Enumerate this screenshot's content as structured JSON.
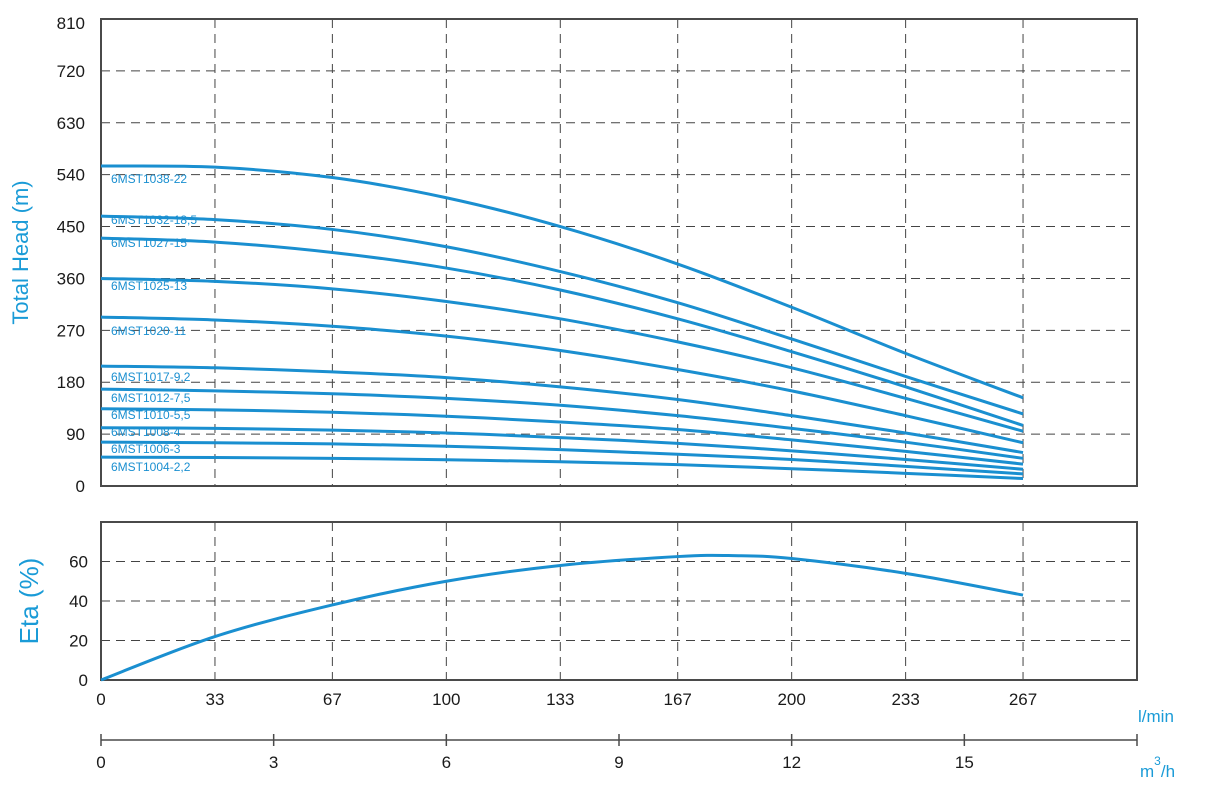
{
  "chart_data": [
    {
      "type": "line",
      "ylabel": "Total Head (m)",
      "ylim": [
        0,
        810
      ],
      "y_ticks": [
        "0",
        "90",
        "180",
        "270",
        "360",
        "450",
        "540",
        "630",
        "720",
        "810"
      ],
      "xlim": [
        0,
        300
      ],
      "x_ticks": [
        "0",
        "33",
        "67",
        "100",
        "133",
        "167",
        "200",
        "233",
        "267"
      ],
      "x_unit": "l/min",
      "grid": true,
      "series": [
        {
          "name": "6MST1038-22",
          "x": [
            0,
            33,
            67,
            100,
            133,
            167,
            200,
            233,
            267
          ],
          "y": [
            555,
            553,
            535,
            500,
            450,
            385,
            310,
            230,
            153
          ]
        },
        {
          "name": "6MST1032-18,5",
          "x": [
            0,
            33,
            67,
            100,
            133,
            167,
            200,
            233,
            267
          ],
          "y": [
            468,
            462,
            445,
            415,
            372,
            318,
            255,
            190,
            125
          ]
        },
        {
          "name": "6MST1027-15",
          "x": [
            0,
            33,
            67,
            100,
            133,
            167,
            200,
            233,
            267
          ],
          "y": [
            430,
            423,
            405,
            378,
            340,
            290,
            233,
            172,
            105
          ]
        },
        {
          "name": "6MST1025-13",
          "x": [
            0,
            33,
            67,
            100,
            133,
            167,
            200,
            233,
            267
          ],
          "y": [
            360,
            355,
            342,
            320,
            290,
            250,
            205,
            152,
            95
          ]
        },
        {
          "name": "6MST1020-11",
          "x": [
            0,
            33,
            67,
            100,
            133,
            167,
            200,
            233,
            267
          ],
          "y": [
            293,
            288,
            277,
            260,
            235,
            202,
            165,
            122,
            75
          ]
        },
        {
          "name": "6MST1017-9,2",
          "x": [
            0,
            33,
            67,
            100,
            133,
            167,
            200,
            233,
            267
          ],
          "y": [
            208,
            205,
            198,
            188,
            172,
            150,
            122,
            92,
            58
          ]
        },
        {
          "name": "6MST1012-7,5",
          "x": [
            0,
            33,
            67,
            100,
            133,
            167,
            200,
            233,
            267
          ],
          "y": [
            168,
            165,
            160,
            152,
            140,
            122,
            100,
            76,
            48
          ]
        },
        {
          "name": "6MST1010-5,5",
          "x": [
            0,
            33,
            67,
            100,
            133,
            167,
            200,
            233,
            267
          ],
          "y": [
            134,
            132,
            128,
            121,
            111,
            98,
            80,
            60,
            38
          ]
        },
        {
          "name": "6MST1008-4",
          "x": [
            0,
            33,
            67,
            100,
            133,
            167,
            200,
            233,
            267
          ],
          "y": [
            101,
            100,
            97,
            92,
            84,
            74,
            61,
            46,
            29
          ]
        },
        {
          "name": "6MST1006-3",
          "x": [
            0,
            33,
            67,
            100,
            133,
            167,
            200,
            233,
            267
          ],
          "y": [
            76,
            75,
            73,
            69,
            63,
            55,
            46,
            34,
            21
          ]
        },
        {
          "name": "6MST1004-2,2",
          "x": [
            0,
            33,
            67,
            100,
            133,
            167,
            200,
            233,
            267
          ],
          "y": [
            50,
            49.5,
            48,
            45.5,
            42,
            37,
            30,
            22,
            13
          ]
        }
      ]
    },
    {
      "type": "line",
      "ylabel": "Eta (%)",
      "ylim": [
        0,
        80
      ],
      "y_ticks": [
        "0",
        "20",
        "40",
        "60"
      ],
      "xlim": [
        0,
        300
      ],
      "x_ticks": [
        "0",
        "33",
        "67",
        "100",
        "133",
        "167",
        "200",
        "233",
        "267"
      ],
      "x_unit": "l/min",
      "grid": true,
      "series": [
        {
          "x": [
            0,
            33,
            67,
            100,
            133,
            167,
            183,
            200,
            233,
            267
          ],
          "y": [
            0,
            22,
            38,
            50,
            58,
            62.5,
            63,
            61.5,
            54,
            43
          ]
        }
      ]
    }
  ],
  "secondary_axis": {
    "ticks": [
      "0",
      "3",
      "6",
      "9",
      "12",
      "15"
    ],
    "tick_values": [
      0,
      3,
      6,
      9,
      12,
      15
    ],
    "max_value": 18,
    "unit_base": "m",
    "unit_exp": "3",
    "unit_tail": "/h"
  },
  "colors": {
    "curve": "#1a8fd0",
    "accent": "#1a9bd7",
    "frame": "#4a4a4a",
    "grid": "#444444"
  }
}
